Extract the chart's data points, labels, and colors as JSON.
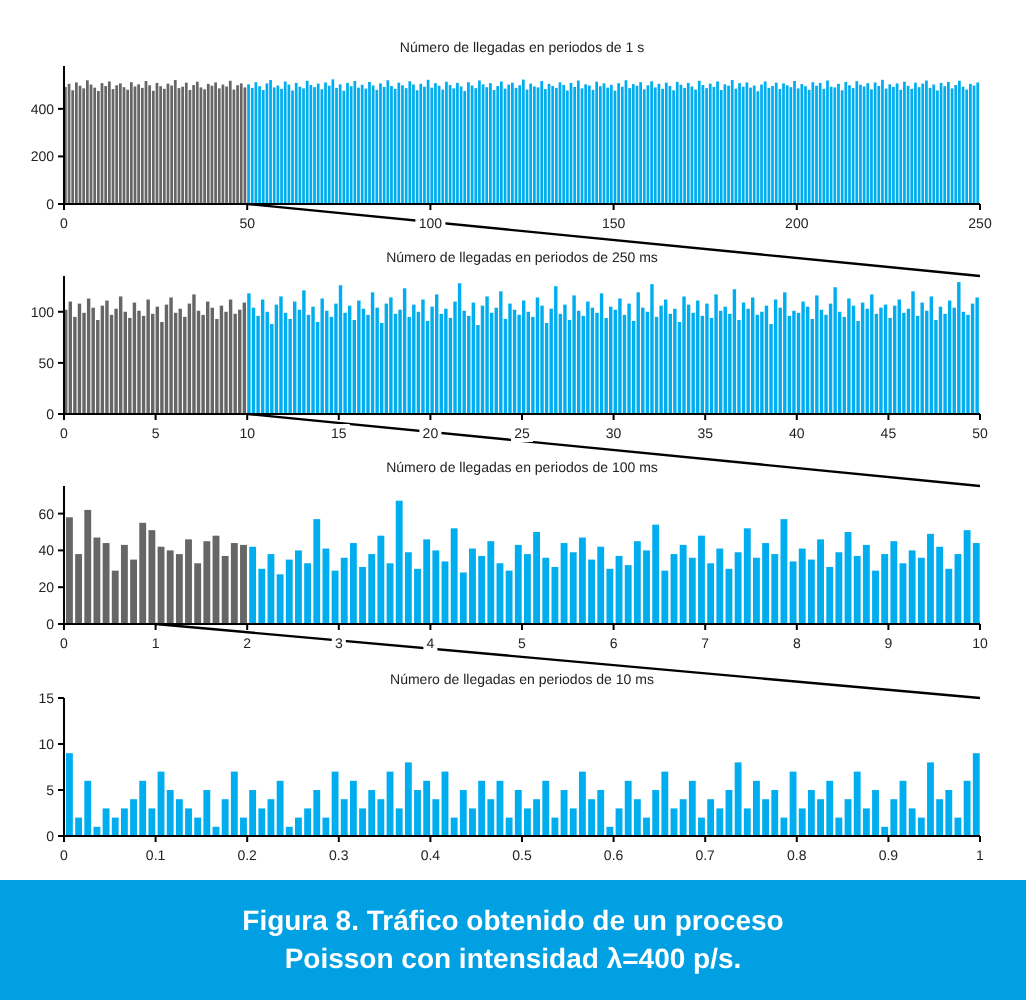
{
  "chart_data": [
    {
      "type": "bar",
      "title": "Número de llegadas en periodos de 1 s",
      "xlim": [
        0,
        250
      ],
      "xticks": [
        0,
        50,
        100,
        150,
        200,
        250
      ],
      "ylim": [
        0,
        580
      ],
      "yticks": [
        0,
        200,
        400
      ],
      "series": [
        {
          "color": "#666666",
          "x": [
            0.5,
            1.5,
            2.5,
            3.5,
            4.5,
            5.5,
            6.5,
            7.5,
            8.5,
            9.5,
            10.5,
            11.5,
            12.5,
            13.5,
            14.5,
            15.5,
            16.5,
            17.5,
            18.5,
            19.5,
            20.5,
            21.5,
            22.5,
            23.5,
            24.5,
            25.5,
            26.5,
            27.5,
            28.5,
            29.5,
            30.5,
            31.5,
            32.5,
            33.5,
            34.5,
            35.5,
            36.5,
            37.5,
            38.5,
            39.5,
            40.5,
            41.5,
            42.5,
            43.5,
            44.5,
            45.5,
            46.5,
            47.5,
            48.5,
            49.5
          ],
          "values": [
            492,
            505,
            478,
            511,
            497,
            486,
            520,
            502,
            489,
            475,
            508,
            496,
            515,
            483,
            499,
            507,
            491,
            480,
            512,
            494,
            503,
            488,
            517,
            499,
            476,
            509,
            495,
            484,
            506,
            498,
            521,
            487,
            493,
            510,
            479,
            500,
            514,
            490,
            482,
            505,
            497,
            511,
            486,
            502,
            494,
            518,
            481,
            499,
            507,
            490
          ]
        },
        {
          "color": "#00aeef",
          "x": [
            50.5,
            51.5,
            52.5,
            53.5,
            54.5,
            55.5,
            56.5,
            57.5,
            58.5,
            59.5,
            60.5,
            61.5,
            62.5,
            63.5,
            64.5,
            65.5,
            66.5,
            67.5,
            68.5,
            69.5,
            70.5,
            71.5,
            72.5,
            73.5,
            74.5,
            75.5,
            76.5,
            77.5,
            78.5,
            79.5,
            80.5,
            81.5,
            82.5,
            83.5,
            84.5,
            85.5,
            86.5,
            87.5,
            88.5,
            89.5,
            90.5,
            91.5,
            92.5,
            93.5,
            94.5,
            95.5,
            96.5,
            97.5,
            98.5,
            99.5,
            100.5,
            101.5,
            102.5,
            103.5,
            104.5,
            105.5,
            106.5,
            107.5,
            108.5,
            109.5,
            110.5,
            111.5,
            112.5,
            113.5,
            114.5,
            115.5,
            116.5,
            117.5,
            118.5,
            119.5,
            120.5,
            121.5,
            122.5,
            123.5,
            124.5,
            125.5,
            126.5,
            127.5,
            128.5,
            129.5,
            130.5,
            131.5,
            132.5,
            133.5,
            134.5,
            135.5,
            136.5,
            137.5,
            138.5,
            139.5,
            140.5,
            141.5,
            142.5,
            143.5,
            144.5,
            145.5,
            146.5,
            147.5,
            148.5,
            149.5,
            150.5,
            151.5,
            152.5,
            153.5,
            154.5,
            155.5,
            156.5,
            157.5,
            158.5,
            159.5,
            160.5,
            161.5,
            162.5,
            163.5,
            164.5,
            165.5,
            166.5,
            167.5,
            168.5,
            169.5,
            170.5,
            171.5,
            172.5,
            173.5,
            174.5,
            175.5,
            176.5,
            177.5,
            178.5,
            179.5,
            180.5,
            181.5,
            182.5,
            183.5,
            184.5,
            185.5,
            186.5,
            187.5,
            188.5,
            189.5,
            190.5,
            191.5,
            192.5,
            193.5,
            194.5,
            195.5,
            196.5,
            197.5,
            198.5,
            199.5,
            200.5,
            201.5,
            202.5,
            203.5,
            204.5,
            205.5,
            206.5,
            207.5,
            208.5,
            209.5,
            210.5,
            211.5,
            212.5,
            213.5,
            214.5,
            215.5,
            216.5,
            217.5,
            218.5,
            219.5,
            220.5,
            221.5,
            222.5,
            223.5,
            224.5,
            225.5,
            226.5,
            227.5,
            228.5,
            229.5,
            230.5,
            231.5,
            232.5,
            233.5,
            234.5,
            235.5,
            236.5,
            237.5,
            238.5,
            239.5,
            240.5,
            241.5,
            242.5,
            243.5,
            244.5,
            245.5,
            246.5,
            247.5,
            248.5,
            249.5
          ],
          "values": [
            503,
            488,
            512,
            495,
            479,
            507,
            521,
            490,
            498,
            484,
            515,
            502,
            477,
            509,
            493,
            486,
            518,
            500,
            491,
            506,
            482,
            511,
            497,
            524,
            488,
            503,
            476,
            509,
            495,
            517,
            489,
            501,
            485,
            513,
            498,
            480,
            507,
            492,
            520,
            496,
            484,
            510,
            499,
            487,
            516,
            502,
            478,
            505,
            493,
            522,
            489,
            508,
            497,
            481,
            514,
            500,
            486,
            509,
            494,
            475,
            512,
            498,
            487,
            519,
            503,
            491,
            508,
            479,
            496,
            515,
            485,
            502,
            510,
            488,
            499,
            523,
            481,
            506,
            494,
            490,
            517,
            483,
            505,
            496,
            488,
            511,
            500,
            477,
            509,
            492,
            519,
            486,
            503,
            498,
            480,
            514,
            495,
            507,
            489,
            501,
            476,
            508,
            493,
            520,
            487,
            504,
            497,
            512,
            482,
            499,
            516,
            490,
            505,
            484,
            510,
            496,
            478,
            513,
            501,
            488,
            509,
            494,
            481,
            518,
            500,
            487,
            506,
            492,
            515,
            479,
            503,
            497,
            521,
            485,
            508,
            493,
            511,
            489,
            498,
            474,
            502,
            515,
            488,
            496,
            510,
            483,
            507,
            499,
            491,
            517,
            486,
            504,
            495,
            480,
            512,
            497,
            509,
            484,
            519,
            493,
            490,
            505,
            478,
            513,
            499,
            487,
            516,
            501,
            494,
            508,
            482,
            511,
            496,
            522,
            485,
            503,
            492,
            507,
            480,
            514,
            497,
            484,
            510,
            491,
            506,
            519,
            488,
            502,
            477,
            509,
            495,
            513,
            486,
            500,
            518,
            493,
            481,
            505,
            498,
            511
          ]
        }
      ]
    },
    {
      "type": "bar",
      "title": "Número de llegadas en periodos de 250 ms",
      "xlim": [
        0,
        50
      ],
      "xticks": [
        0,
        5,
        10,
        15,
        20,
        25,
        30,
        35,
        40,
        45,
        50
      ],
      "ylim": [
        0,
        135
      ],
      "yticks": [
        0,
        50,
        100
      ],
      "series": [
        {
          "color": "#666666",
          "x": [
            0.125,
            0.375,
            0.625,
            0.875,
            1.125,
            1.375,
            1.625,
            1.875,
            2.125,
            2.375,
            2.625,
            2.875,
            3.125,
            3.375,
            3.625,
            3.875,
            4.125,
            4.375,
            4.625,
            4.875,
            5.125,
            5.375,
            5.625,
            5.875,
            6.125,
            6.375,
            6.625,
            6.875,
            7.125,
            7.375,
            7.625,
            7.875,
            8.125,
            8.375,
            8.625,
            8.875,
            9.125,
            9.375,
            9.625,
            9.875
          ],
          "values": [
            102,
            110,
            95,
            108,
            99,
            113,
            104,
            92,
            106,
            111,
            97,
            103,
            115,
            100,
            94,
            109,
            101,
            96,
            112,
            98,
            105,
            90,
            107,
            114,
            99,
            103,
            95,
            108,
            117,
            101,
            97,
            110,
            104,
            93,
            106,
            100,
            112,
            98,
            102,
            109
          ]
        },
        {
          "color": "#00aeef",
          "x": [
            10.125,
            10.375,
            10.625,
            10.875,
            11.125,
            11.375,
            11.625,
            11.875,
            12.125,
            12.375,
            12.625,
            12.875,
            13.125,
            13.375,
            13.625,
            13.875,
            14.125,
            14.375,
            14.625,
            14.875,
            15.125,
            15.375,
            15.625,
            15.875,
            16.125,
            16.375,
            16.625,
            16.875,
            17.125,
            17.375,
            17.625,
            17.875,
            18.125,
            18.375,
            18.625,
            18.875,
            19.125,
            19.375,
            19.625,
            19.875,
            20.125,
            20.375,
            20.625,
            20.875,
            21.125,
            21.375,
            21.625,
            21.875,
            22.125,
            22.375,
            22.625,
            22.875,
            23.125,
            23.375,
            23.625,
            23.875,
            24.125,
            24.375,
            24.625,
            24.875,
            25.125,
            25.375,
            25.625,
            25.875,
            26.125,
            26.375,
            26.625,
            26.875,
            27.125,
            27.375,
            27.625,
            27.875,
            28.125,
            28.375,
            28.625,
            28.875,
            29.125,
            29.375,
            29.625,
            29.875,
            30.125,
            30.375,
            30.625,
            30.875,
            31.125,
            31.375,
            31.625,
            31.875,
            32.125,
            32.375,
            32.625,
            32.875,
            33.125,
            33.375,
            33.625,
            33.875,
            34.125,
            34.375,
            34.625,
            34.875,
            35.125,
            35.375,
            35.625,
            35.875,
            36.125,
            36.375,
            36.625,
            36.875,
            37.125,
            37.375,
            37.625,
            37.875,
            38.125,
            38.375,
            38.625,
            38.875,
            39.125,
            39.375,
            39.625,
            39.875,
            40.125,
            40.375,
            40.625,
            40.875,
            41.125,
            41.375,
            41.625,
            41.875,
            42.125,
            42.375,
            42.625,
            42.875,
            43.125,
            43.375,
            43.625,
            43.875,
            44.125,
            44.375,
            44.625,
            44.875,
            45.125,
            45.375,
            45.625,
            45.875,
            46.125,
            46.375,
            46.625,
            46.875,
            47.125,
            47.375,
            47.625,
            47.875,
            48.125,
            48.375,
            48.625,
            48.875,
            49.125,
            49.375,
            49.625,
            49.875
          ],
          "values": [
            118,
            104,
            96,
            112,
            100,
            88,
            107,
            115,
            99,
            93,
            110,
            102,
            121,
            97,
            105,
            90,
            113,
            101,
            95,
            108,
            126,
            99,
            106,
            92,
            111,
            103,
            97,
            119,
            104,
            89,
            108,
            114,
            98,
            102,
            123,
            95,
            107,
            100,
            112,
            91,
            105,
            117,
            98,
            103,
            94,
            110,
            128,
            101,
            96,
            109,
            87,
            106,
            115,
            99,
            104,
            120,
            93,
            108,
            102,
            97,
            111,
            100,
            95,
            114,
            106,
            89,
            103,
            125,
            98,
            107,
            92,
            116,
            101,
            96,
            110,
            104,
            99,
            118,
            94,
            105,
            102,
            113,
            97,
            108,
            91,
            119,
            104,
            100,
            127,
            95,
            106,
            112,
            98,
            103,
            90,
            115,
            107,
            99,
            111,
            96,
            108,
            94,
            117,
            101,
            105,
            98,
            122,
            92,
            109,
            103,
            114,
            97,
            100,
            106,
            88,
            112,
            104,
            119,
            96,
            101,
            99,
            110,
            105,
            93,
            116,
            102,
            97,
            108,
            124,
            100,
            95,
            113,
            106,
            91,
            109,
            103,
            117,
            98,
            104,
            107,
            94,
            106,
            112,
            99,
            103,
            120,
            96,
            109,
            101,
            115,
            92,
            105,
            98,
            111,
            104,
            129,
            100,
            97,
            108,
            114
          ]
        }
      ]
    },
    {
      "type": "bar",
      "title": "Número de llegadas en periodos de 100 ms",
      "xlim": [
        0,
        10
      ],
      "xticks": [
        0,
        1,
        2,
        3,
        4,
        5,
        6,
        7,
        8,
        9,
        10
      ],
      "ylim": [
        0,
        75
      ],
      "yticks": [
        0,
        20,
        40,
        60
      ],
      "series": [
        {
          "color": "#666666",
          "x": [
            0.05,
            0.15,
            0.25,
            0.35,
            0.45,
            0.55,
            0.65,
            0.75,
            0.85,
            0.95,
            1.05,
            1.15,
            1.25,
            1.35,
            1.45,
            1.55,
            1.65,
            1.75,
            1.85,
            1.95
          ],
          "values": [
            58,
            38,
            62,
            47,
            44,
            29,
            43,
            35,
            55,
            51,
            42,
            40,
            38,
            46,
            33,
            45,
            48,
            37,
            44,
            43
          ]
        },
        {
          "color": "#00aeef",
          "x": [
            2.05,
            2.15,
            2.25,
            2.35,
            2.45,
            2.55,
            2.65,
            2.75,
            2.85,
            2.95,
            3.05,
            3.15,
            3.25,
            3.35,
            3.45,
            3.55,
            3.65,
            3.75,
            3.85,
            3.95,
            4.05,
            4.15,
            4.25,
            4.35,
            4.45,
            4.55,
            4.65,
            4.75,
            4.85,
            4.95,
            5.05,
            5.15,
            5.25,
            5.35,
            5.45,
            5.55,
            5.65,
            5.75,
            5.85,
            5.95,
            6.05,
            6.15,
            6.25,
            6.35,
            6.45,
            6.55,
            6.65,
            6.75,
            6.85,
            6.95,
            7.05,
            7.15,
            7.25,
            7.35,
            7.45,
            7.55,
            7.65,
            7.75,
            7.85,
            7.95,
            8.05,
            8.15,
            8.25,
            8.35,
            8.45,
            8.55,
            8.65,
            8.75,
            8.85,
            8.95,
            9.05,
            9.15,
            9.25,
            9.35,
            9.45,
            9.55,
            9.65,
            9.75,
            9.85,
            9.95
          ],
          "values": [
            42,
            30,
            38,
            27,
            35,
            40,
            33,
            57,
            41,
            29,
            36,
            44,
            31,
            38,
            48,
            33,
            67,
            39,
            30,
            46,
            40,
            34,
            52,
            28,
            41,
            37,
            45,
            33,
            29,
            43,
            38,
            50,
            36,
            31,
            44,
            39,
            47,
            35,
            42,
            30,
            37,
            32,
            45,
            40,
            54,
            29,
            38,
            43,
            36,
            48,
            33,
            41,
            30,
            39,
            52,
            36,
            44,
            38,
            57,
            34,
            41,
            35,
            46,
            31,
            39,
            50,
            37,
            43,
            29,
            38,
            45,
            33,
            40,
            36,
            49,
            42,
            30,
            38,
            51,
            44
          ]
        }
      ]
    },
    {
      "type": "bar",
      "title": "Número de llegadas en periodos de 10 ms",
      "xlim": [
        0,
        1
      ],
      "xticks": [
        0,
        0.1,
        0.2,
        0.3,
        0.4,
        0.5,
        0.6,
        0.7,
        0.8,
        0.9,
        1
      ],
      "ylim": [
        0,
        15
      ],
      "yticks": [
        0,
        5,
        10,
        15
      ],
      "annotations": [
        "Figura 8. Tráfico obtenido de un proceso Poisson con intensidad λ=400 p/s."
      ],
      "series": [
        {
          "color": "#00aeef",
          "x": [
            0.005,
            0.015,
            0.025,
            0.035,
            0.045,
            0.055,
            0.065,
            0.075,
            0.085,
            0.095,
            0.105,
            0.115,
            0.125,
            0.135,
            0.145,
            0.155,
            0.165,
            0.175,
            0.185,
            0.195,
            0.205,
            0.215,
            0.225,
            0.235,
            0.245,
            0.255,
            0.265,
            0.275,
            0.285,
            0.295,
            0.305,
            0.315,
            0.325,
            0.335,
            0.345,
            0.355,
            0.365,
            0.375,
            0.385,
            0.395,
            0.405,
            0.415,
            0.425,
            0.435,
            0.445,
            0.455,
            0.465,
            0.475,
            0.485,
            0.495,
            0.505,
            0.515,
            0.525,
            0.535,
            0.545,
            0.555,
            0.565,
            0.575,
            0.585,
            0.595,
            0.605,
            0.615,
            0.625,
            0.635,
            0.645,
            0.655,
            0.665,
            0.675,
            0.685,
            0.695,
            0.705,
            0.715,
            0.725,
            0.735,
            0.745,
            0.755,
            0.765,
            0.775,
            0.785,
            0.795,
            0.805,
            0.815,
            0.825,
            0.835,
            0.845,
            0.855,
            0.865,
            0.875,
            0.885,
            0.895,
            0.905,
            0.915,
            0.925,
            0.935,
            0.945,
            0.955,
            0.965,
            0.975,
            0.985,
            0.995
          ],
          "values": [
            9,
            2,
            6,
            1,
            3,
            2,
            3,
            4,
            6,
            3,
            7,
            5,
            4,
            3,
            2,
            5,
            1,
            4,
            7,
            2,
            5,
            3,
            4,
            6,
            1,
            2,
            3,
            5,
            2,
            7,
            4,
            6,
            3,
            5,
            4,
            7,
            3,
            8,
            5,
            6,
            4,
            7,
            2,
            5,
            3,
            6,
            4,
            6,
            2,
            5,
            3,
            4,
            6,
            2,
            5,
            3,
            7,
            4,
            5,
            1,
            3,
            6,
            4,
            2,
            5,
            7,
            3,
            4,
            6,
            2,
            4,
            3,
            5,
            8,
            3,
            6,
            4,
            5,
            2,
            7,
            3,
            5,
            4,
            6,
            2,
            4,
            7,
            3,
            5,
            1,
            4,
            6,
            3,
            2,
            8,
            4,
            5,
            2,
            6,
            9
          ]
        }
      ]
    }
  ]
}
